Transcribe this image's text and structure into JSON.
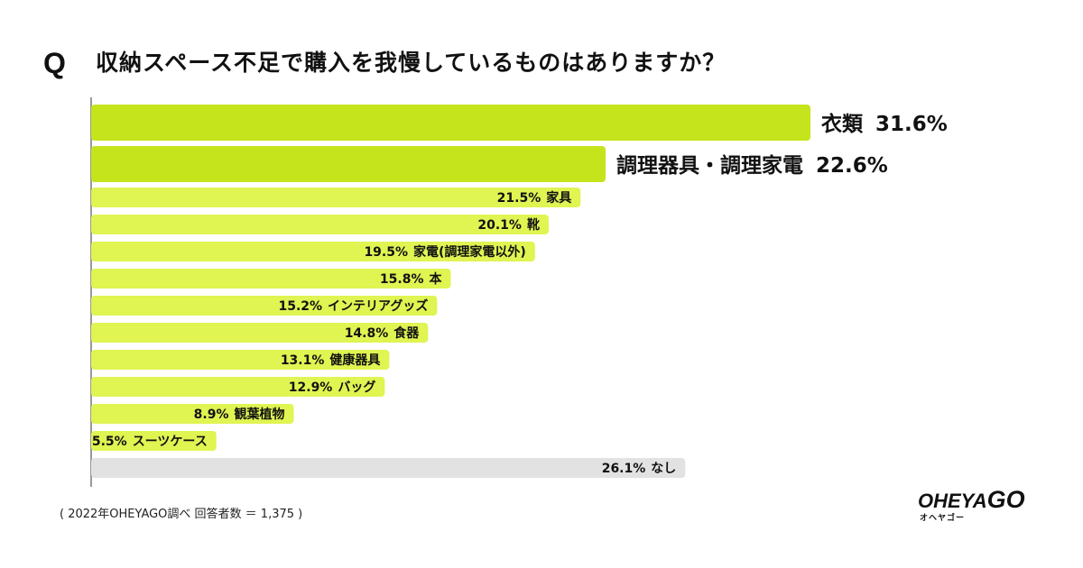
{
  "question": {
    "mark": "Q",
    "text": "収納スペース不足で購入を我慢しているものはありますか？"
  },
  "footnote": "( 2022年OHEYAGO調べ  回答者数  ＝ 1,375 )",
  "logo": {
    "main": "OHEYA",
    "main_go": "GO",
    "sub": "オヘヤゴー"
  },
  "colors": {
    "highlight": "#c6e41b",
    "bar": "#e0f452",
    "none_bar": "#e2e2e2",
    "axis": "#999999"
  },
  "chart_data": {
    "type": "bar",
    "orientation": "horizontal",
    "unit": "%",
    "title": "収納スペース不足で購入を我慢しているものはありますか？",
    "xlim": [
      0,
      40
    ],
    "grid": false,
    "categories": [
      "衣類",
      "調理器具・調理家電",
      "家具",
      "靴",
      "家電(調理家電以外)",
      "本",
      "インテリアグッズ",
      "食器",
      "健康器具",
      "バッグ",
      "観葉植物",
      "スーツケース",
      "なし"
    ],
    "values": [
      31.6,
      22.6,
      21.5,
      20.1,
      19.5,
      15.8,
      15.2,
      14.8,
      13.1,
      12.9,
      8.9,
      5.5,
      26.1
    ],
    "value_labels": [
      "31.6%",
      "22.6%",
      "21.5%",
      "20.1%",
      "19.5%",
      "15.8%",
      "15.2%",
      "14.8%",
      "13.1%",
      "12.9%",
      "8.9%",
      "5.5%",
      "26.1%"
    ],
    "emphasis": [
      "highlight",
      "highlight",
      "normal",
      "normal",
      "normal",
      "normal",
      "normal",
      "normal",
      "normal",
      "normal",
      "normal",
      "normal",
      "none"
    ]
  }
}
